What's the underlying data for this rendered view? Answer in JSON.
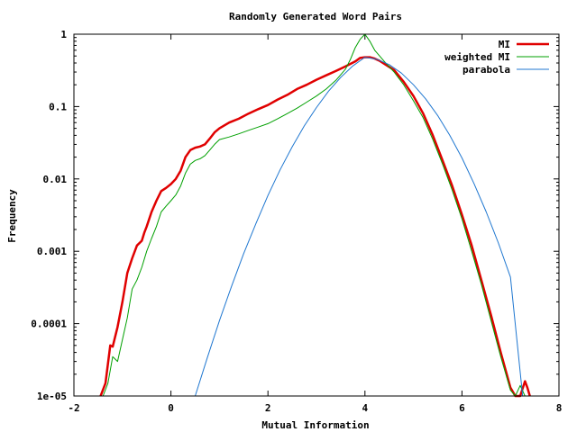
{
  "chart_data": {
    "type": "line",
    "title": "Randomly Generated Word Pairs",
    "xlabel": "Mutual Information",
    "ylabel": "Frequency",
    "xlim": [
      -2,
      8
    ],
    "ylim": [
      1e-05,
      1
    ],
    "yscale": "log",
    "xticks": [
      -2,
      0,
      2,
      4,
      6,
      8
    ],
    "xtick_labels": [
      "-2",
      "0",
      "2",
      "4",
      "6",
      "8"
    ],
    "yticks": [
      1e-05,
      0.0001,
      0.001,
      0.01,
      0.1,
      1
    ],
    "ytick_labels": [
      "1e-05",
      "0.0001",
      "0.001",
      "0.01",
      "0.1",
      "1"
    ],
    "legend_position": "top-right",
    "grid": false,
    "series": [
      {
        "name": "MI",
        "color": "#e00000",
        "x": [
          -1.45,
          -1.35,
          -1.25,
          -1.2,
          -1.1,
          -1.0,
          -0.9,
          -0.8,
          -0.7,
          -0.6,
          -0.55,
          -0.5,
          -0.4,
          -0.3,
          -0.2,
          -0.1,
          0.0,
          0.1,
          0.2,
          0.3,
          0.4,
          0.5,
          0.6,
          0.7,
          0.8,
          0.9,
          1.0,
          1.2,
          1.4,
          1.6,
          1.8,
          2.0,
          2.2,
          2.4,
          2.6,
          2.8,
          3.0,
          3.2,
          3.4,
          3.6,
          3.8,
          3.9,
          4.0,
          4.1,
          4.2,
          4.3,
          4.4,
          4.6,
          4.8,
          5.0,
          5.2,
          5.4,
          5.6,
          5.8,
          6.0,
          6.2,
          6.4,
          6.6,
          6.8,
          7.0,
          7.1,
          7.2,
          7.3,
          7.35,
          7.4
        ],
        "values": [
          1e-05,
          1.5e-05,
          5e-05,
          4.8e-05,
          9e-05,
          0.0002,
          0.0005,
          0.0008,
          0.0012,
          0.0014,
          0.0018,
          0.0022,
          0.0035,
          0.005,
          0.0068,
          0.0075,
          0.0085,
          0.01,
          0.013,
          0.02,
          0.025,
          0.027,
          0.028,
          0.03,
          0.036,
          0.044,
          0.05,
          0.06,
          0.068,
          0.08,
          0.092,
          0.105,
          0.125,
          0.145,
          0.175,
          0.2,
          0.235,
          0.27,
          0.31,
          0.36,
          0.42,
          0.47,
          0.48,
          0.48,
          0.46,
          0.43,
          0.39,
          0.32,
          0.22,
          0.14,
          0.08,
          0.04,
          0.018,
          0.008,
          0.0032,
          0.0012,
          0.0004,
          0.00013,
          4e-05,
          1.3e-05,
          1e-05,
          1e-05,
          1.6e-05,
          1.3e-05,
          1e-05
        ]
      },
      {
        "name": "weighted MI",
        "color": "#00a000",
        "x": [
          -1.4,
          -1.3,
          -1.2,
          -1.1,
          -1.0,
          -0.9,
          -0.8,
          -0.7,
          -0.6,
          -0.5,
          -0.4,
          -0.3,
          -0.2,
          -0.1,
          0.0,
          0.1,
          0.2,
          0.3,
          0.4,
          0.5,
          0.6,
          0.7,
          0.8,
          0.9,
          1.0,
          1.2,
          1.4,
          1.6,
          1.8,
          2.0,
          2.2,
          2.4,
          2.6,
          2.8,
          3.0,
          3.2,
          3.4,
          3.6,
          3.7,
          3.8,
          3.9,
          4.0,
          4.1,
          4.2,
          4.4,
          4.6,
          4.8,
          5.0,
          5.2,
          5.4,
          5.6,
          5.8,
          6.0,
          6.2,
          6.4,
          6.6,
          6.8,
          7.0,
          7.1,
          7.2,
          7.3
        ],
        "values": [
          1e-05,
          1.5e-05,
          3.5e-05,
          3e-05,
          6e-05,
          0.00012,
          0.0003,
          0.0004,
          0.0006,
          0.001,
          0.0015,
          0.0022,
          0.0035,
          0.0042,
          0.005,
          0.006,
          0.008,
          0.012,
          0.016,
          0.018,
          0.019,
          0.021,
          0.025,
          0.03,
          0.035,
          0.038,
          0.042,
          0.047,
          0.052,
          0.058,
          0.068,
          0.08,
          0.095,
          0.115,
          0.14,
          0.175,
          0.23,
          0.33,
          0.45,
          0.65,
          0.85,
          1.0,
          0.8,
          0.6,
          0.42,
          0.3,
          0.2,
          0.12,
          0.07,
          0.035,
          0.016,
          0.007,
          0.0028,
          0.001,
          0.00035,
          0.00011,
          3.5e-05,
          1.2e-05,
          1e-05,
          1.4e-05,
          1e-05
        ]
      },
      {
        "name": "parabola",
        "color": "#1f77d0",
        "x": [
          0.5,
          0.75,
          1.0,
          1.25,
          1.5,
          1.75,
          2.0,
          2.25,
          2.5,
          2.75,
          3.0,
          3.25,
          3.5,
          3.75,
          4.0,
          4.25,
          4.5,
          4.75,
          5.0,
          5.25,
          5.5,
          5.75,
          6.0,
          6.25,
          6.5,
          6.75,
          7.0,
          7.25
        ],
        "values": [
          1e-05,
          3.4e-05,
          0.00011,
          0.00033,
          0.00093,
          0.0024,
          0.0059,
          0.0133,
          0.0278,
          0.054,
          0.097,
          0.163,
          0.253,
          0.364,
          0.48,
          0.45,
          0.38,
          0.29,
          0.2,
          0.128,
          0.075,
          0.04,
          0.0195,
          0.0086,
          0.0035,
          0.0013,
          0.00044,
          1e-05
        ]
      }
    ]
  }
}
